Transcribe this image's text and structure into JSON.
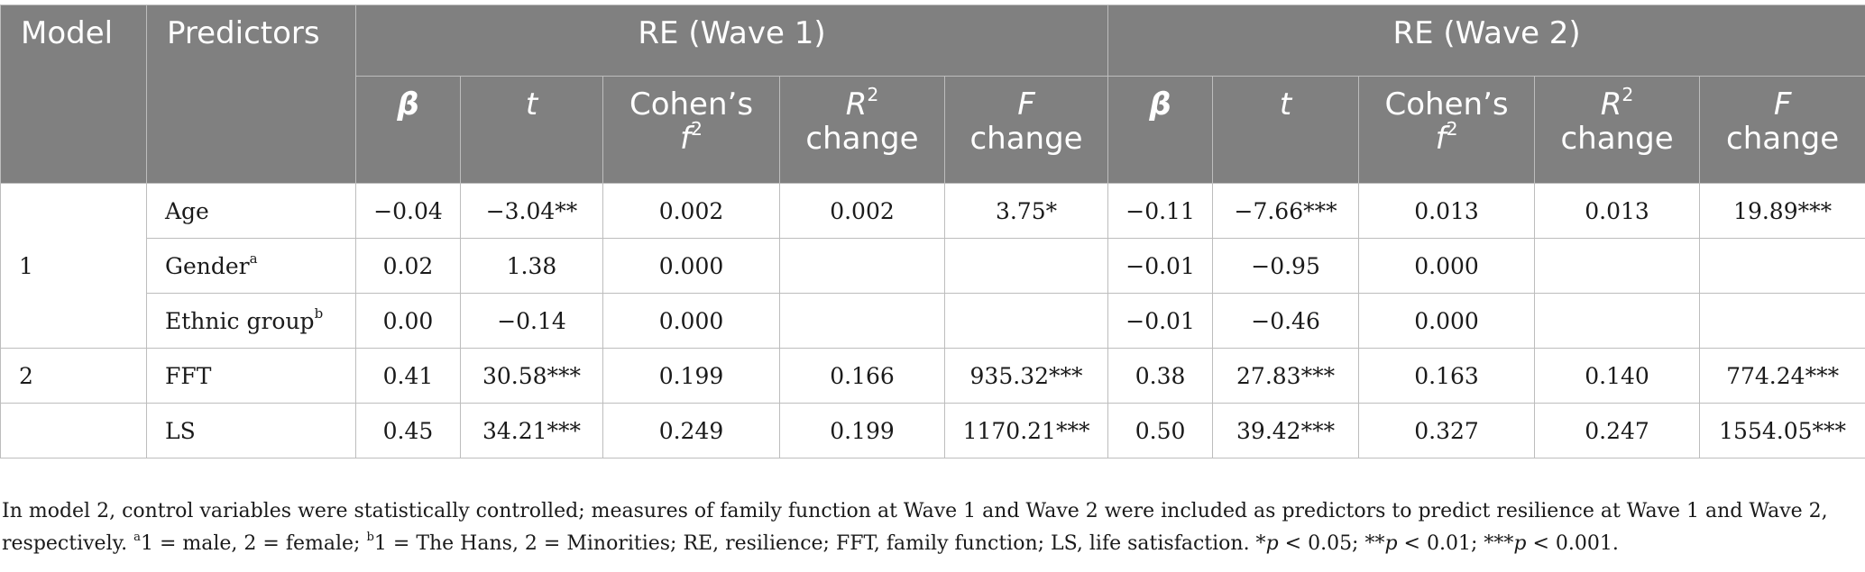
{
  "header": {
    "model": "Model",
    "predictors": "Predictors",
    "wave1": "RE (Wave 1)",
    "wave2": "RE (Wave 2)",
    "beta": "β",
    "t": "t",
    "cohen": "Cohen’s",
    "cohen_f": "f",
    "cohen_sup": "2",
    "r": "R",
    "r_sup": "2",
    "r_change": "change",
    "f": "F",
    "f_change": "change"
  },
  "rows": [
    {
      "model": "1",
      "predictor": "Age",
      "sup": "",
      "w1": [
        "−0.04",
        "−3.04**",
        "0.002",
        "0.002",
        "3.75*"
      ],
      "w2": [
        "−0.11",
        "−7.66***",
        "0.013",
        "0.013",
        "19.89***"
      ]
    },
    {
      "model": "",
      "predictor": "Gender",
      "sup": "a",
      "w1": [
        "0.02",
        "1.38",
        "0.000",
        "",
        ""
      ],
      "w2": [
        "−0.01",
        "−0.95",
        "0.000",
        "",
        ""
      ]
    },
    {
      "model": "",
      "predictor": "Ethnic group",
      "sup": "b",
      "w1": [
        "0.00",
        "−0.14",
        "0.000",
        "",
        ""
      ],
      "w2": [
        "−0.01",
        "−0.46",
        "0.000",
        "",
        ""
      ]
    },
    {
      "model": "2",
      "predictor": "FFT",
      "sup": "",
      "w1": [
        "0.41",
        "30.58***",
        "0.199",
        "0.166",
        "935.32***"
      ],
      "w2": [
        "0.38",
        "27.83***",
        "0.163",
        "0.140",
        "774.24***"
      ]
    },
    {
      "model": "",
      "predictor": "LS",
      "sup": "",
      "w1": [
        "0.45",
        "34.21***",
        "0.249",
        "0.199",
        "1170.21***"
      ],
      "w2": [
        "0.50",
        "39.42***",
        "0.327",
        "0.247",
        "1554.05***"
      ]
    }
  ],
  "note": {
    "line1": "In model 2, control variables were statistically controlled; measures of family function at Wave 1 and Wave 2 were included as predictors to predict resilience at Wave 1 and Wave 2,",
    "l2_pre": "respectively. ",
    "sup_a": "a",
    "l2_a": "1 = male, 2 = female; ",
    "sup_b": "b",
    "l2_b": "1 = The Hans, 2 = Minorities; RE, resilience; FFT, family function; LS, life satisfaction. *",
    "p1": "p",
    "l2_c": " < 0.05; **",
    "p2": "p",
    "l2_d": " < 0.01; ***",
    "p3": "p",
    "l2_e": " < 0.001."
  }
}
